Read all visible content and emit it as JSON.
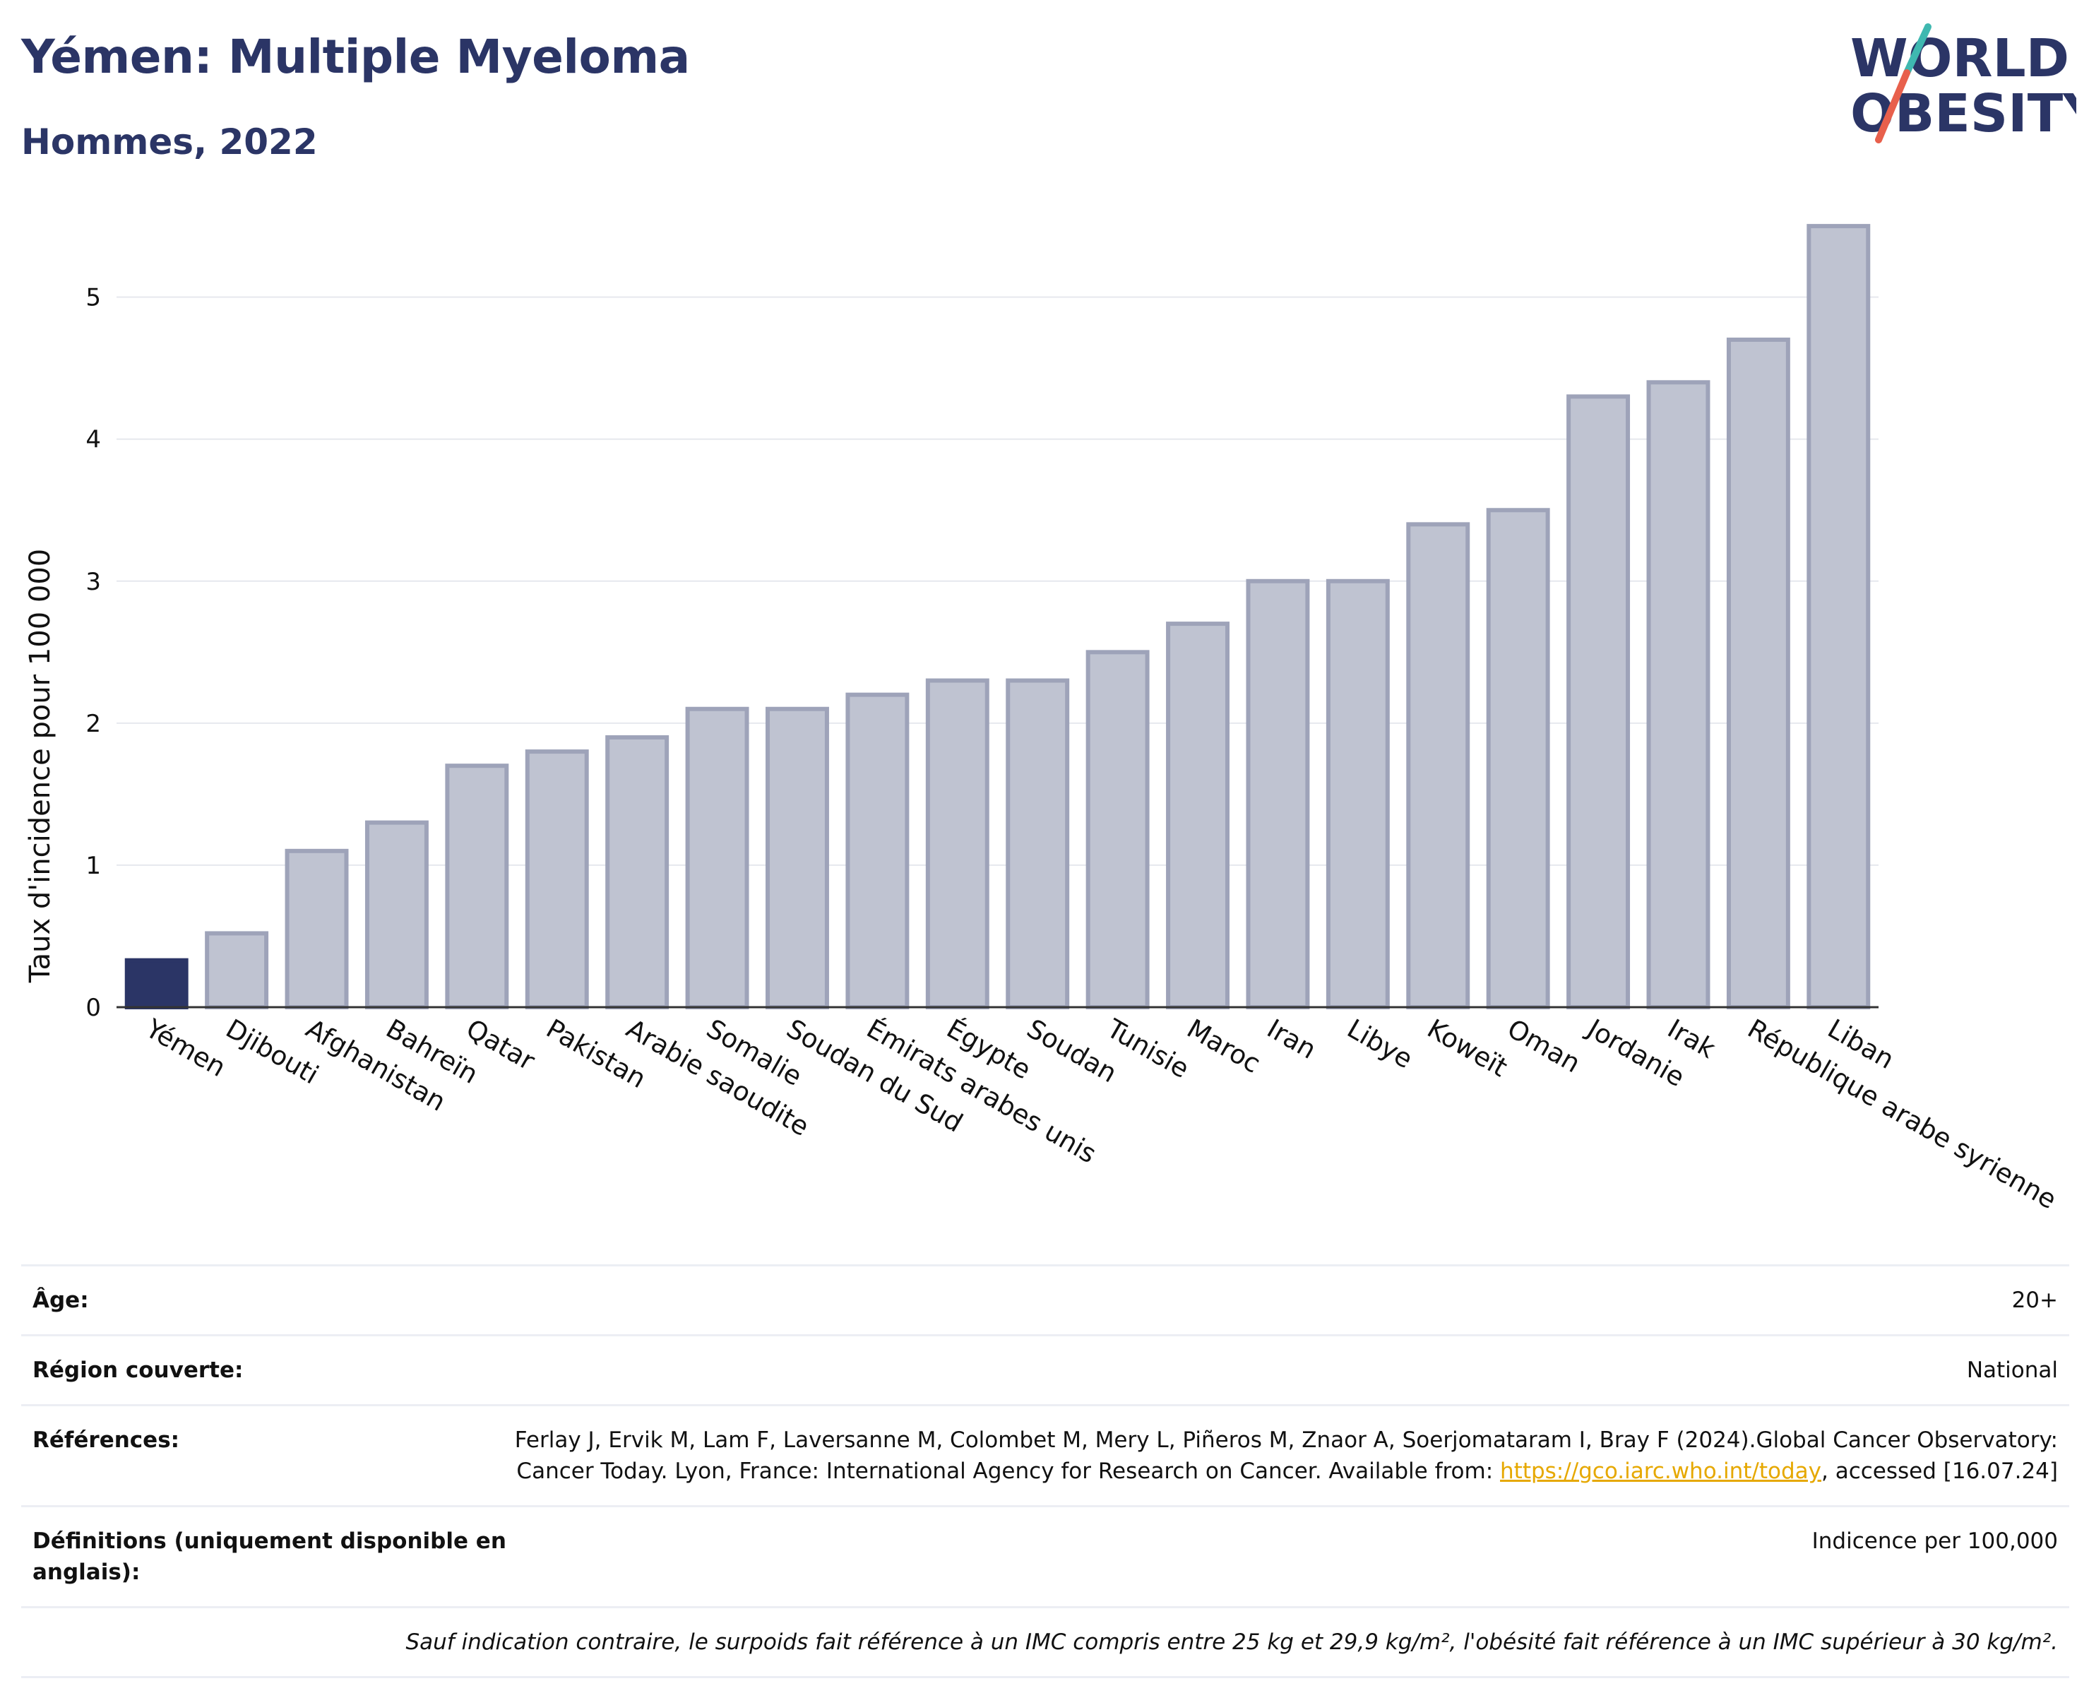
{
  "header": {
    "title": "Yémen: Multiple Myeloma",
    "subtitle": "Hommes, 2022"
  },
  "logo": {
    "line1": "WORLD",
    "line2": "OBESITY"
  },
  "colors": {
    "highlight": "#2b3566",
    "bar": "#bfc3d1",
    "bar_border": "#9ea3b9",
    "accent_teal": "#3fb8b0",
    "accent_red": "#e8604c"
  },
  "chart_data": {
    "type": "bar",
    "ylabel": "Taux d'incidence pour 100 000",
    "ylim": [
      0,
      5.6
    ],
    "yticks": [
      0,
      1,
      2,
      3,
      4,
      5
    ],
    "grid": true,
    "highlight": "Yémen",
    "categories": [
      "Yémen",
      "Djibouti",
      "Afghanistan",
      "Bahreïn",
      "Qatar",
      "Pakistan",
      "Arabie saoudite",
      "Somalie",
      "Soudan du Sud",
      "Émirats arabes unis",
      "Égypte",
      "Soudan",
      "Tunisie",
      "Maroc",
      "Iran",
      "Libye",
      "Koweït",
      "Oman",
      "Jordanie",
      "Irak",
      "République arabe syrienne",
      "Liban"
    ],
    "values": [
      0.33,
      0.52,
      1.1,
      1.3,
      1.7,
      1.8,
      1.9,
      2.1,
      2.1,
      2.2,
      2.3,
      2.3,
      2.5,
      2.7,
      3.0,
      3.0,
      3.4,
      3.5,
      4.3,
      4.4,
      4.7,
      5.5
    ]
  },
  "info": {
    "age_label": "Âge:",
    "age_value": "20+",
    "region_label": "Région couverte:",
    "region_value": "National",
    "refs_label": "Références:",
    "refs_text_1": "Ferlay J, Ervik M, Lam F, Laversanne M, Colombet M, Mery L, Piñeros M, Znaor A, Soerjomataram I, Bray F (2024).Global Cancer Observatory: Cancer Today. Lyon, France: International Agency for Research on Cancer. Available from: ",
    "refs_link": "https://gco.iarc.who.int/today",
    "refs_text_2": ", accessed [16.07.24]",
    "defs_label": "Définitions (uniquement disponible en anglais):",
    "defs_value": "Indicence per 100,000",
    "note": "Sauf indication contraire, le surpoids fait référence à un IMC compris entre 25 kg et 29,9 kg/m², l'obésité fait référence à un IMC supérieur à 30 kg/m²."
  }
}
